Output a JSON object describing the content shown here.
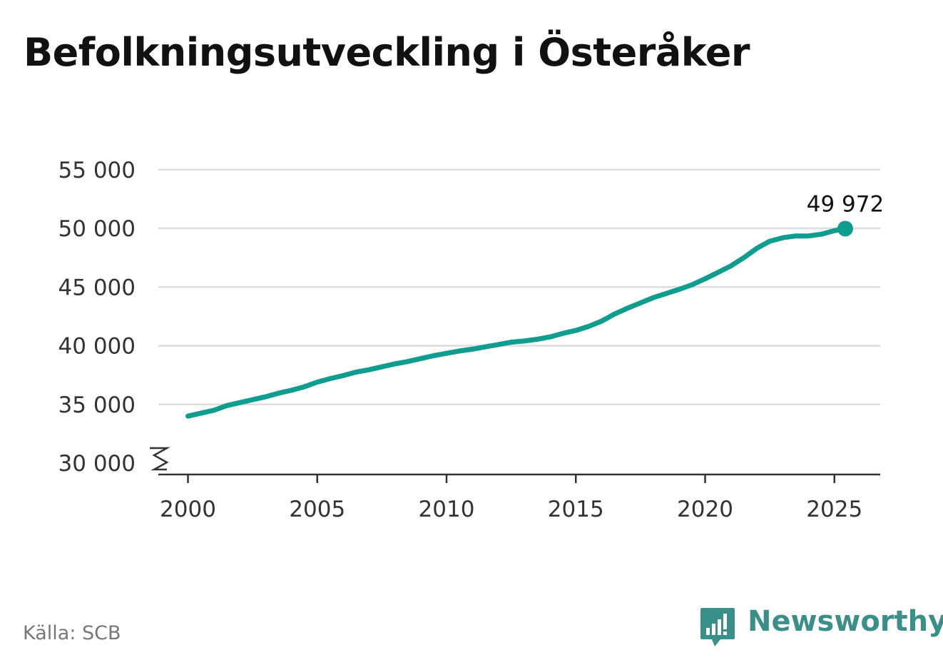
{
  "title": "Befolkningsutveckling i Österåker",
  "source": "Källa: SCB",
  "brand": {
    "name": "Newsworthy",
    "icon": "newsworthy-logo-icon",
    "color": "#3a8f88"
  },
  "colors": {
    "line": "#0f9d8f",
    "grid": "#dddddd",
    "axis": "#333333"
  },
  "chart_data": {
    "type": "line",
    "title": "Befolkningsutveckling i Österåker",
    "xlabel": "",
    "ylabel": "",
    "xlim": [
      1999.85,
      2026.5
    ],
    "ylim": [
      30000,
      55000
    ],
    "y_axis_break": true,
    "grid": true,
    "y_ticks": [
      30000,
      35000,
      40000,
      45000,
      50000,
      55000
    ],
    "y_tick_labels": [
      "30 000",
      "35 000",
      "40 000",
      "45 000",
      "50 000",
      "55 000"
    ],
    "x_ticks": [
      2000,
      2005,
      2010,
      2015,
      2020,
      2025
    ],
    "x_tick_labels": [
      "2000",
      "2005",
      "2010",
      "2015",
      "2020",
      "2025"
    ],
    "end_label": "49 972",
    "series": [
      {
        "x": [
          2000.0,
          2000.5,
          2001.0,
          2001.5,
          2002.0,
          2002.5,
          2003.0,
          2003.5,
          2004.0,
          2004.5,
          2005.0,
          2005.5,
          2006.0,
          2006.5,
          2007.0,
          2007.5,
          2008.0,
          2008.5,
          2009.0,
          2009.5,
          2010.0,
          2010.5,
          2011.0,
          2011.5,
          2012.0,
          2012.5,
          2013.0,
          2013.5,
          2014.0,
          2014.5,
          2015.0,
          2015.5,
          2016.0,
          2016.5,
          2017.0,
          2017.5,
          2018.0,
          2018.5,
          2019.0,
          2019.5,
          2020.0,
          2020.5,
          2021.0,
          2021.5,
          2022.0,
          2022.5,
          2023.0,
          2023.5,
          2024.0,
          2024.5,
          2025.0,
          2025.42
        ],
        "values": [
          34000,
          34250,
          34500,
          34900,
          35150,
          35400,
          35650,
          35950,
          36200,
          36500,
          36900,
          37200,
          37450,
          37750,
          37950,
          38200,
          38450,
          38650,
          38900,
          39150,
          39350,
          39550,
          39700,
          39900,
          40100,
          40300,
          40400,
          40550,
          40750,
          41050,
          41300,
          41650,
          42100,
          42700,
          43200,
          43650,
          44100,
          44450,
          44800,
          45200,
          45700,
          46250,
          46800,
          47500,
          48300,
          48900,
          49200,
          49350,
          49350,
          49500,
          49800,
          49972
        ]
      }
    ]
  }
}
